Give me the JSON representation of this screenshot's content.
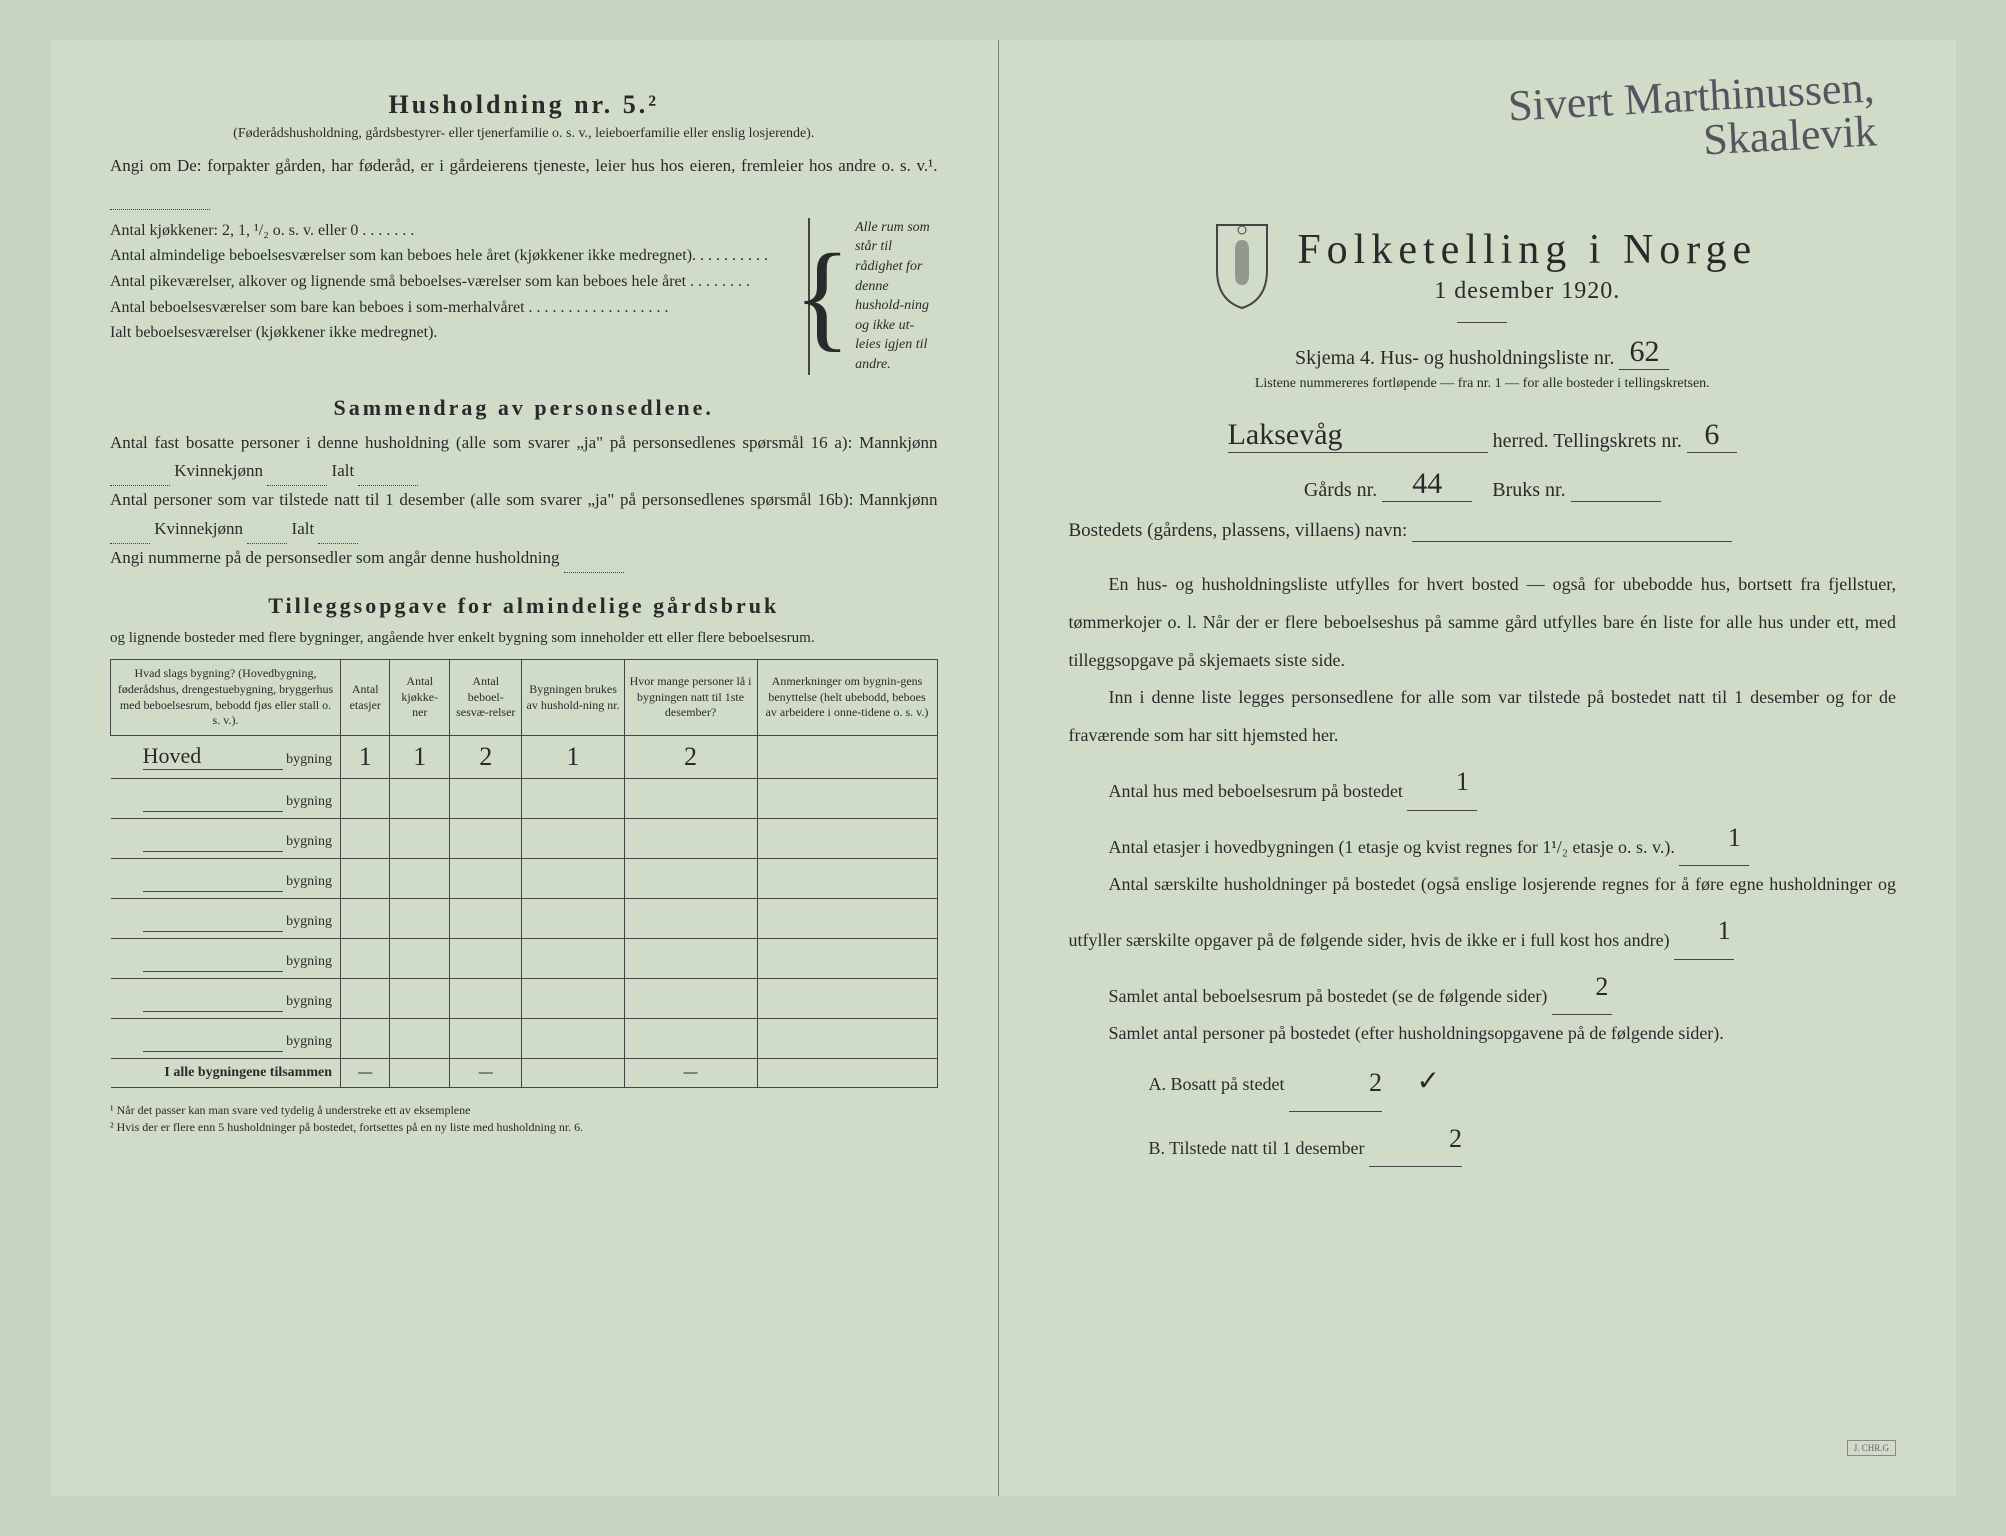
{
  "left": {
    "heading": "Husholdning nr. 5.²",
    "sub": "(Føderådshusholdning, gårdsbestyrer- eller tjenerfamilie o. s. v., leieboerfamilie eller enslig losjerende).",
    "para1": "Angi om De: forpakter gården, har føderåd, er i gårdeierens tjeneste, leier hus hos eieren, fremleier hos andre o. s. v.¹.",
    "kitchen_lines": [
      "Antal kjøkkener: 2, 1, ¹/₂ o. s. v. eller 0 . . . . . . .",
      "Antal almindelige beboelsesværelser som kan beboes hele året (kjøkkener ikke medregnet). . . . . . . . . .",
      "Antal pikeværelser, alkover og lignende små beboelses-værelser som kan beboes hele året . . . . . . . .",
      "Antal beboelsesværelser som bare kan beboes i som-merhalvåret . . . . . . . . . . . . . . . . . .",
      "Ialt beboelsesværelser (kjøkkener ikke medregnet)."
    ],
    "brace_text": "Alle rum som står til rådighet for denne hushold-ning og ikke ut-leies igjen til andre.",
    "summary_title": "Sammendrag av personsedlene.",
    "summary_p1": "Antal fast bosatte personer i denne husholdning (alle som svarer „ja\" på personsedlenes spørsmål 16 a): Mannkjønn",
    "kvinne": "Kvinnekjønn",
    "ialt": "Ialt",
    "summary_p2": "Antal personer som var tilstede natt til 1 desember (alle som svarer „ja\" på personsedlenes spørsmål 16b): Mannkjønn",
    "summary_p3": "Angi nummerne på de personsedler som angår denne husholdning",
    "tillegg_title": "Tilleggsopgave for almindelige gårdsbruk",
    "tillegg_intro": "og lignende bosteder med flere bygninger, angående hver enkelt bygning som inneholder ett eller flere beboelsesrum.",
    "table": {
      "headers": [
        "Hvad slags bygning?\n(Hovedbygning, føderådshus, drengestuebygning, bryggerhus med beboelsesrum, bebodd fjøs eller stall o. s. v.).",
        "Antal etasjer",
        "Antal kjøkke-ner",
        "Antal beboel-sesvæ-relser",
        "Bygningen brukes av hushold-ning nr.",
        "Hvor mange personer lå i bygningen natt til 1ste desember?",
        "Anmerkninger om bygnin-gens benyttelse (helt ubebodd, beboes av arbeidere i onne-tidene o. s. v.)"
      ],
      "row_suffix": "bygning",
      "rows": [
        {
          "label": "Hoved",
          "v": [
            "1",
            "1",
            "2",
            "1",
            "2",
            ""
          ]
        },
        {
          "label": "",
          "v": [
            "",
            "",
            "",
            "",
            "",
            ""
          ]
        },
        {
          "label": "",
          "v": [
            "",
            "",
            "",
            "",
            "",
            ""
          ]
        },
        {
          "label": "",
          "v": [
            "",
            "",
            "",
            "",
            "",
            ""
          ]
        },
        {
          "label": "",
          "v": [
            "",
            "",
            "",
            "",
            "",
            ""
          ]
        },
        {
          "label": "",
          "v": [
            "",
            "",
            "",
            "",
            "",
            ""
          ]
        },
        {
          "label": "",
          "v": [
            "",
            "",
            "",
            "",
            "",
            ""
          ]
        },
        {
          "label": "",
          "v": [
            "",
            "",
            "",
            "",
            "",
            ""
          ]
        }
      ],
      "total_label": "I alle bygningene tilsammen",
      "total": [
        "—",
        "",
        "—",
        "",
        "—",
        ""
      ]
    },
    "footnote1": "¹ Når det passer kan man svare ved tydelig å understreke ett av eksemplene",
    "footnote2": "² Hvis der er flere enn 5 husholdninger på bostedet, fortsettes på en ny liste med husholdning nr. 6."
  },
  "right": {
    "handwritten_name": "Sivert Marthinussen,",
    "handwritten_place": "Skaalevik",
    "title": "Folketelling i Norge",
    "date": "1 desember 1920.",
    "skjema": "Skjema 4.  Hus- og husholdningsliste nr.",
    "skjema_nr": "62",
    "note": "Listene nummereres fortløpende — fra nr. 1 — for alle bosteder i tellingskretsen.",
    "herred_value": "Laksevåg",
    "herred_label": "herred.   Tellingskrets nr.",
    "krets_nr": "6",
    "gards_label": "Gårds nr.",
    "gards_nr": "44",
    "bruks_label": "Bruks nr.",
    "bruks_nr": "",
    "bosted_label": "Bostedets (gårdens, plassens, villaens) navn:",
    "para1": "En hus- og husholdningsliste utfylles for hvert bosted — også for ubebodde hus, bortsett fra fjellstuer, tømmerkojer o. l. Når der er flere beboelseshus på samme gård utfylles bare én liste for alle hus under ett, med tilleggsopgave på skjemaets siste side.",
    "para2": "Inn i denne liste legges personsedlene for alle som var tilstede på bostedet natt til 1 desember og for de fraværende som har sitt hjemsted her.",
    "q1": "Antal hus med beboelsesrum på bostedet",
    "q1_val": "1",
    "q2a": "Antal etasjer i hovedbygningen (1 etasje og kvist regnes for 1¹/₂ etasje o. s. v.).",
    "q2_val": "1",
    "q3": "Antal særskilte husholdninger på bostedet (også enslige losjerende regnes for å føre egne husholdninger og utfyller særskilte opgaver på de følgende sider, hvis de ikke er i full kost hos andre)",
    "q3_val": "1",
    "q4": "Samlet antal beboelsesrum på bostedet (se de følgende sider)",
    "q4_val": "2",
    "q5": "Samlet antal personer på bostedet (efter husholdningsopgavene på de følgende sider).",
    "qA": "A.  Bosatt på stedet",
    "qA_val": "2",
    "qB": "B.  Tilstede natt til 1 desember",
    "qB_val": "2",
    "stamp": "J. CHR.G"
  }
}
